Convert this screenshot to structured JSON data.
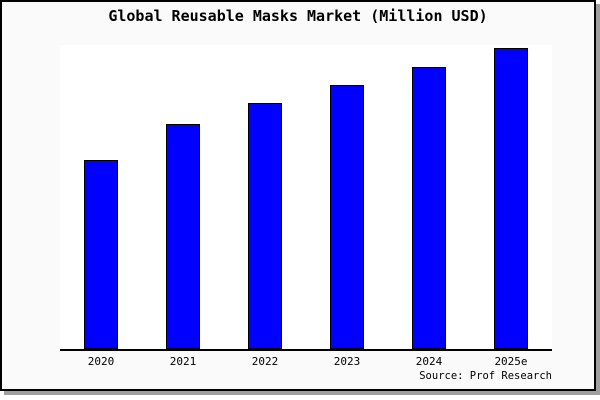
{
  "title": "Global Reusable Masks Market (Million USD)",
  "source": "Source: Prof Research",
  "colors": {
    "bar_fill": "#0000ff",
    "bar_border": "#000000",
    "canvas_background": "#fafafa",
    "plot_background": "#ffffff",
    "axis_line": "#000000",
    "frame_border": "#000000",
    "frame_shadow": "#9e9e9e",
    "text": "#000000"
  },
  "chart_data": {
    "type": "bar",
    "title": "Global Reusable Masks Market (Million USD)",
    "categories": [
      "2020",
      "2021",
      "2022",
      "2023",
      "2024",
      "2025e"
    ],
    "values": [
      62.9,
      75.0,
      81.7,
      87.9,
      93.7,
      100
    ],
    "value_scale": "relative units (y-axis unlabeled in chart; largest bar 2025e = 100)",
    "xlabel": "",
    "ylabel": "",
    "ylim": [
      0,
      101.8
    ],
    "grid": false,
    "legend": false,
    "y_axis_ticks": false,
    "annotation": "Source: Prof Research"
  }
}
